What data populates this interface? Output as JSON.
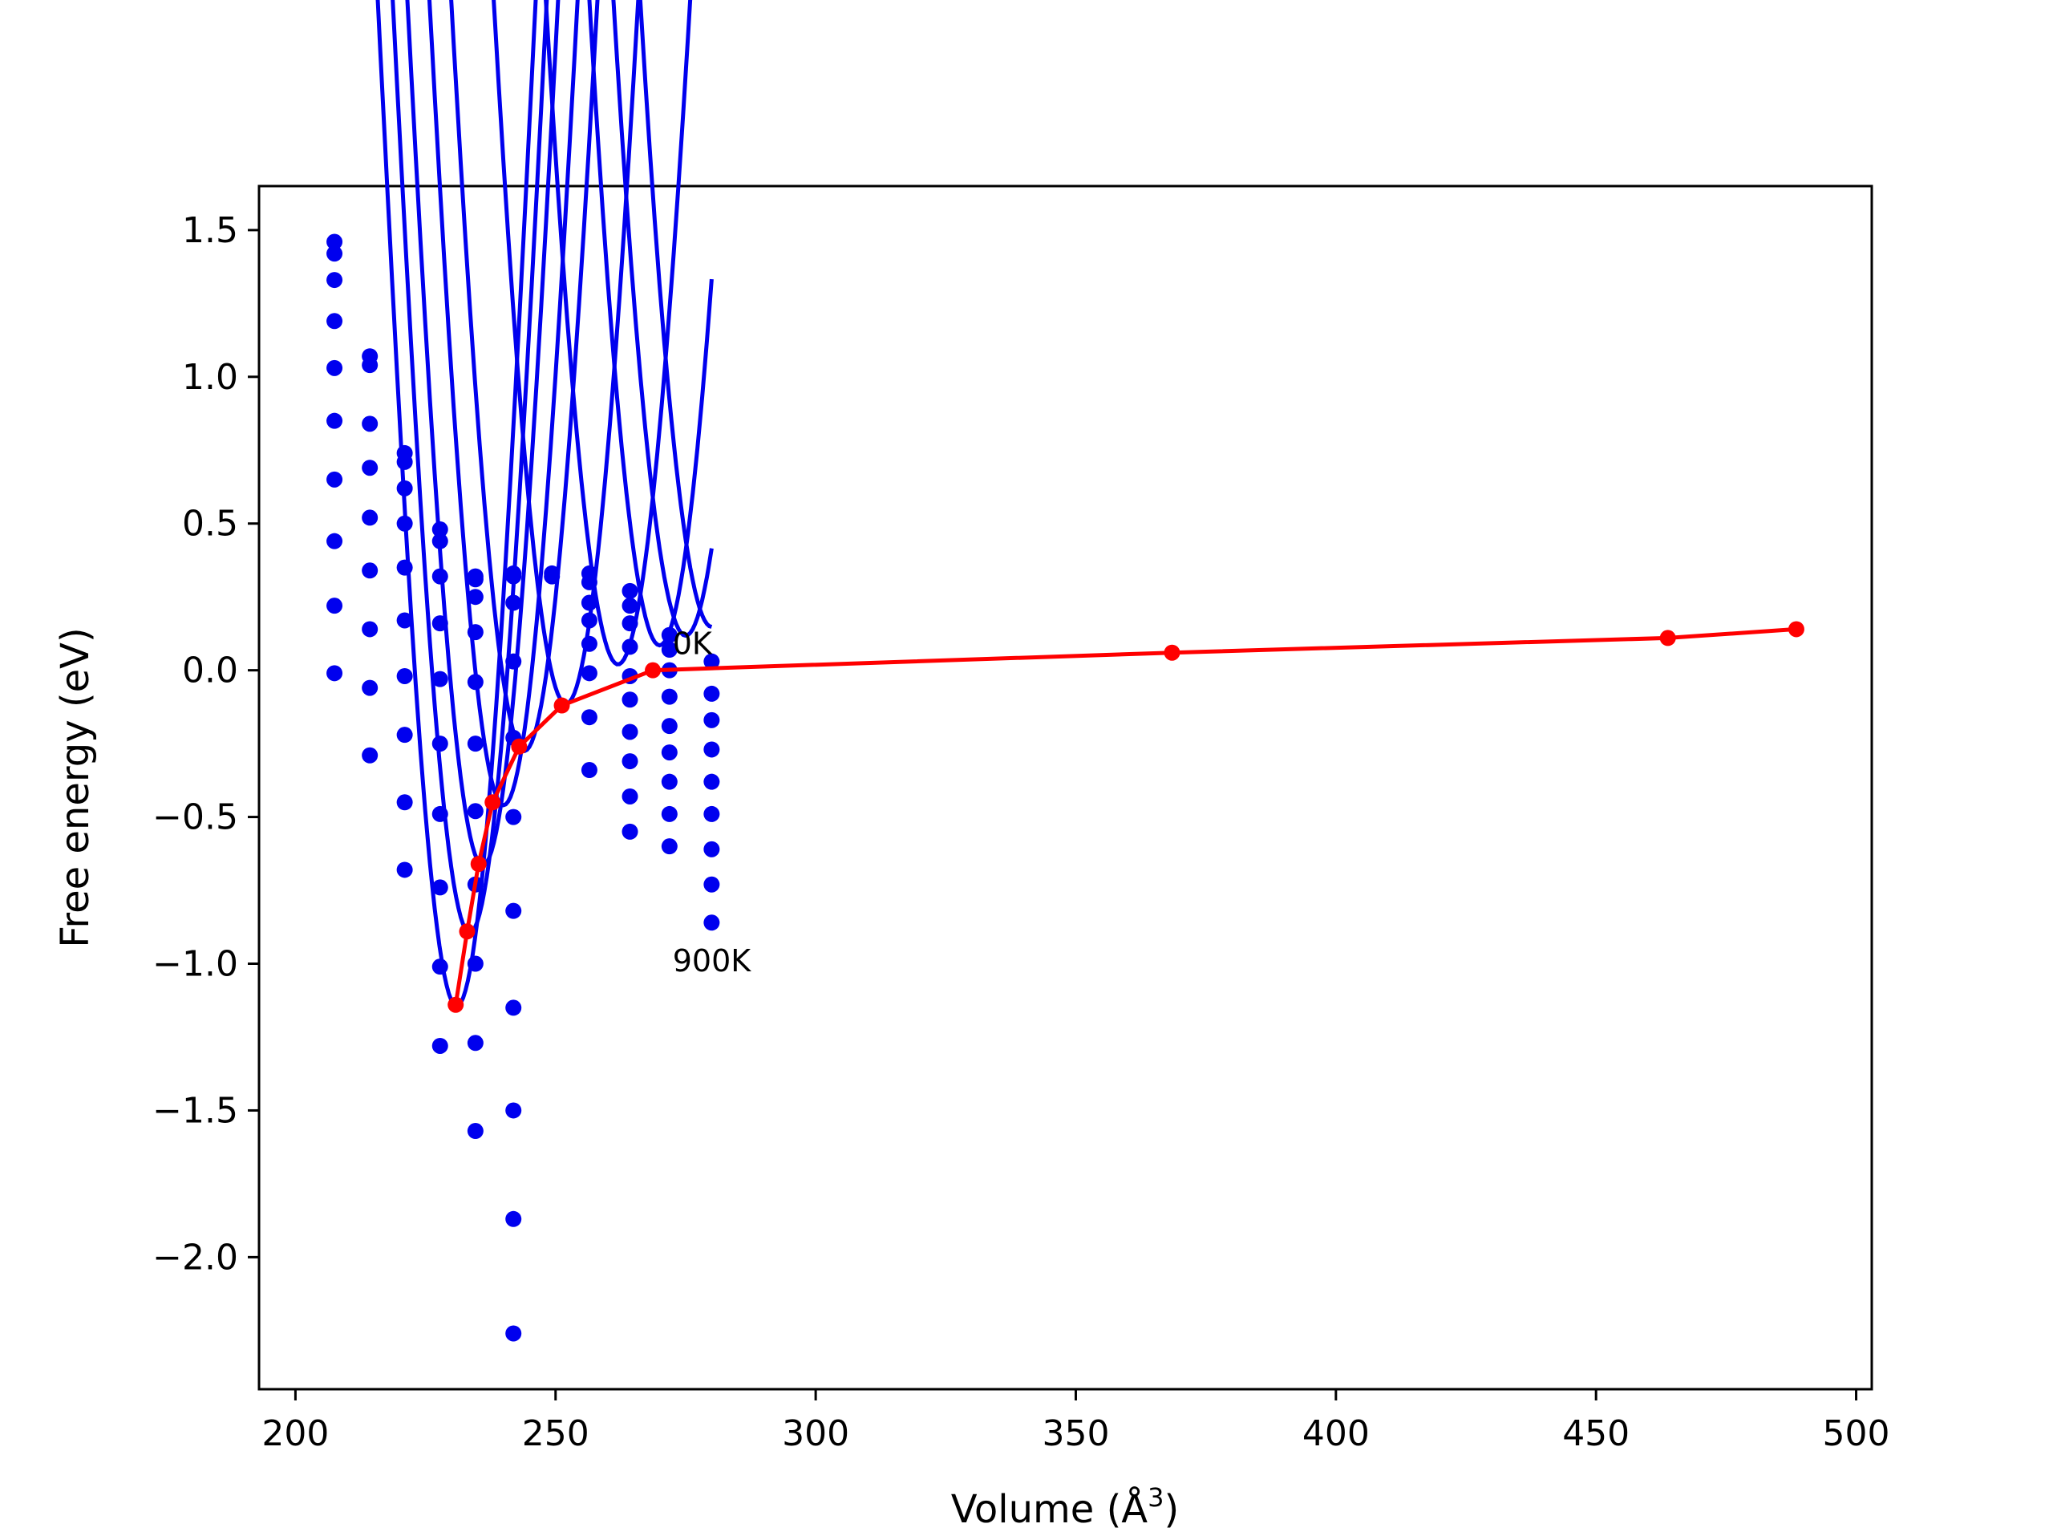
{
  "chart_data": {
    "type": "scatter",
    "title": "",
    "xlabel": "Volume (Å",
    "xlabel_sup": "3",
    "xlabel_suffix": ")",
    "ylabel": "Free energy (eV)",
    "xlim": [
      193,
      503
    ],
    "ylim": [
      -2.45,
      1.65
    ],
    "x_ticks": [
      200,
      250,
      300,
      350,
      400,
      450,
      500
    ],
    "y_ticks": [
      1.5,
      1.0,
      0.5,
      0.0,
      -0.5,
      -1.0,
      -1.5,
      -2.0
    ],
    "y_tick_labels": [
      "1.5",
      "1.0",
      "0.5",
      "0.0",
      "−0.5",
      "−1.0",
      "−1.5",
      "−2.0"
    ],
    "grid": false,
    "colors": {
      "fit": "#0000ee",
      "points": "#0000ee",
      "minima": "#ff0000",
      "frame": "#000000"
    },
    "fit_vrange": [
      207.2,
      280.0
    ],
    "fit_curves": [
      {
        "a": 0.012,
        "v0": 280.0,
        "e0": 0.148,
        "b": 0.0003
      },
      {
        "a": 0.012,
        "v0": 275.0,
        "e0": 0.118,
        "b": 0.00035
      },
      {
        "a": 0.013,
        "v0": 270.0,
        "e0": 0.085,
        "b": 0.00042
      },
      {
        "a": 0.013,
        "v0": 262.0,
        "e0": 0.02,
        "b": 0.00055
      },
      {
        "a": 0.014,
        "v0": 252.0,
        "e0": -0.115,
        "b": 0.00065
      },
      {
        "a": 0.015,
        "v0": 244.0,
        "e0": -0.275,
        "b": 0.0008
      },
      {
        "a": 0.016,
        "v0": 240.0,
        "e0": -0.46,
        "b": 0.0009
      },
      {
        "a": 0.017,
        "v0": 236.0,
        "e0": -0.665,
        "b": 0.001
      },
      {
        "a": 0.018,
        "v0": 233.5,
        "e0": -0.895,
        "b": 0.0011
      },
      {
        "a": 0.019,
        "v0": 231.0,
        "e0": -1.145,
        "b": 0.0012
      }
    ],
    "points": [
      [
        207.5,
        1.46
      ],
      [
        207.5,
        1.42
      ],
      [
        207.5,
        1.33
      ],
      [
        207.5,
        1.19
      ],
      [
        207.5,
        1.03
      ],
      [
        207.5,
        0.85
      ],
      [
        207.5,
        0.65
      ],
      [
        207.5,
        0.44
      ],
      [
        207.5,
        0.22
      ],
      [
        207.5,
        -0.01
      ],
      [
        214.3,
        1.07
      ],
      [
        214.3,
        1.04
      ],
      [
        214.3,
        0.84
      ],
      [
        214.3,
        0.69
      ],
      [
        214.3,
        0.52
      ],
      [
        214.3,
        0.34
      ],
      [
        214.3,
        0.14
      ],
      [
        214.3,
        -0.06
      ],
      [
        214.3,
        -0.29
      ],
      [
        221.0,
        0.74
      ],
      [
        221.0,
        0.71
      ],
      [
        221.0,
        0.62
      ],
      [
        221.0,
        0.5
      ],
      [
        221.0,
        0.35
      ],
      [
        221.0,
        0.17
      ],
      [
        221.0,
        -0.02
      ],
      [
        221.0,
        -0.22
      ],
      [
        221.0,
        -0.45
      ],
      [
        221.0,
        -0.68
      ],
      [
        227.8,
        0.48
      ],
      [
        227.8,
        0.44
      ],
      [
        227.8,
        0.32
      ],
      [
        227.8,
        0.16
      ],
      [
        227.8,
        -0.03
      ],
      [
        227.8,
        -0.25
      ],
      [
        227.8,
        -0.49
      ],
      [
        227.8,
        -0.74
      ],
      [
        227.8,
        -1.01
      ],
      [
        227.8,
        -1.28
      ],
      [
        234.6,
        0.32
      ],
      [
        234.6,
        0.31
      ],
      [
        234.6,
        0.25
      ],
      [
        234.6,
        0.13
      ],
      [
        234.6,
        -0.04
      ],
      [
        234.6,
        -0.25
      ],
      [
        234.6,
        -0.48
      ],
      [
        234.6,
        -0.73
      ],
      [
        234.6,
        -1.0
      ],
      [
        234.6,
        -1.27
      ],
      [
        234.6,
        -1.57
      ],
      [
        241.9,
        0.33
      ],
      [
        241.9,
        0.32
      ],
      [
        241.9,
        0.23
      ],
      [
        241.9,
        0.03
      ],
      [
        241.9,
        -0.23
      ],
      [
        241.9,
        -0.5
      ],
      [
        241.9,
        -0.82
      ],
      [
        241.9,
        -1.15
      ],
      [
        241.9,
        -1.5
      ],
      [
        241.9,
        -1.87
      ],
      [
        241.9,
        -2.26
      ],
      [
        249.3,
        0.33
      ],
      [
        249.3,
        0.32
      ],
      [
        256.5,
        0.33
      ],
      [
        256.5,
        0.3
      ],
      [
        256.5,
        0.23
      ],
      [
        256.5,
        0.17
      ],
      [
        256.5,
        0.09
      ],
      [
        256.5,
        -0.01
      ],
      [
        256.5,
        -0.16
      ],
      [
        256.5,
        -0.34
      ],
      [
        264.3,
        0.27
      ],
      [
        264.3,
        0.22
      ],
      [
        264.3,
        0.16
      ],
      [
        264.3,
        0.08
      ],
      [
        264.3,
        -0.02
      ],
      [
        264.3,
        -0.1
      ],
      [
        264.3,
        -0.21
      ],
      [
        264.3,
        -0.31
      ],
      [
        264.3,
        -0.43
      ],
      [
        264.3,
        -0.55
      ],
      [
        271.9,
        0.12
      ],
      [
        271.9,
        0.07
      ],
      [
        271.9,
        0.0
      ],
      [
        271.9,
        -0.09
      ],
      [
        271.9,
        -0.19
      ],
      [
        271.9,
        -0.28
      ],
      [
        271.9,
        -0.38
      ],
      [
        271.9,
        -0.49
      ],
      [
        271.9,
        -0.6
      ],
      [
        280.0,
        0.03
      ],
      [
        280.0,
        -0.08
      ],
      [
        280.0,
        -0.17
      ],
      [
        280.0,
        -0.27
      ],
      [
        280.0,
        -0.38
      ],
      [
        280.0,
        -0.49
      ],
      [
        280.0,
        -0.61
      ],
      [
        280.0,
        -0.73
      ],
      [
        280.0,
        -0.86
      ]
    ],
    "minima_line": [
      [
        230.8,
        -1.14
      ],
      [
        233.0,
        -0.89
      ],
      [
        235.2,
        -0.66
      ],
      [
        237.9,
        -0.45
      ],
      [
        243.0,
        -0.26
      ],
      [
        251.2,
        -0.12
      ],
      [
        268.7,
        0.0
      ],
      [
        368.5,
        0.06
      ],
      [
        463.8,
        0.11
      ],
      [
        488.5,
        0.14
      ]
    ],
    "annotations": [
      {
        "text": "0K",
        "x": 272.5,
        "y": 0.09
      },
      {
        "text": "900K",
        "x": 272.5,
        "y": -0.99
      }
    ]
  }
}
